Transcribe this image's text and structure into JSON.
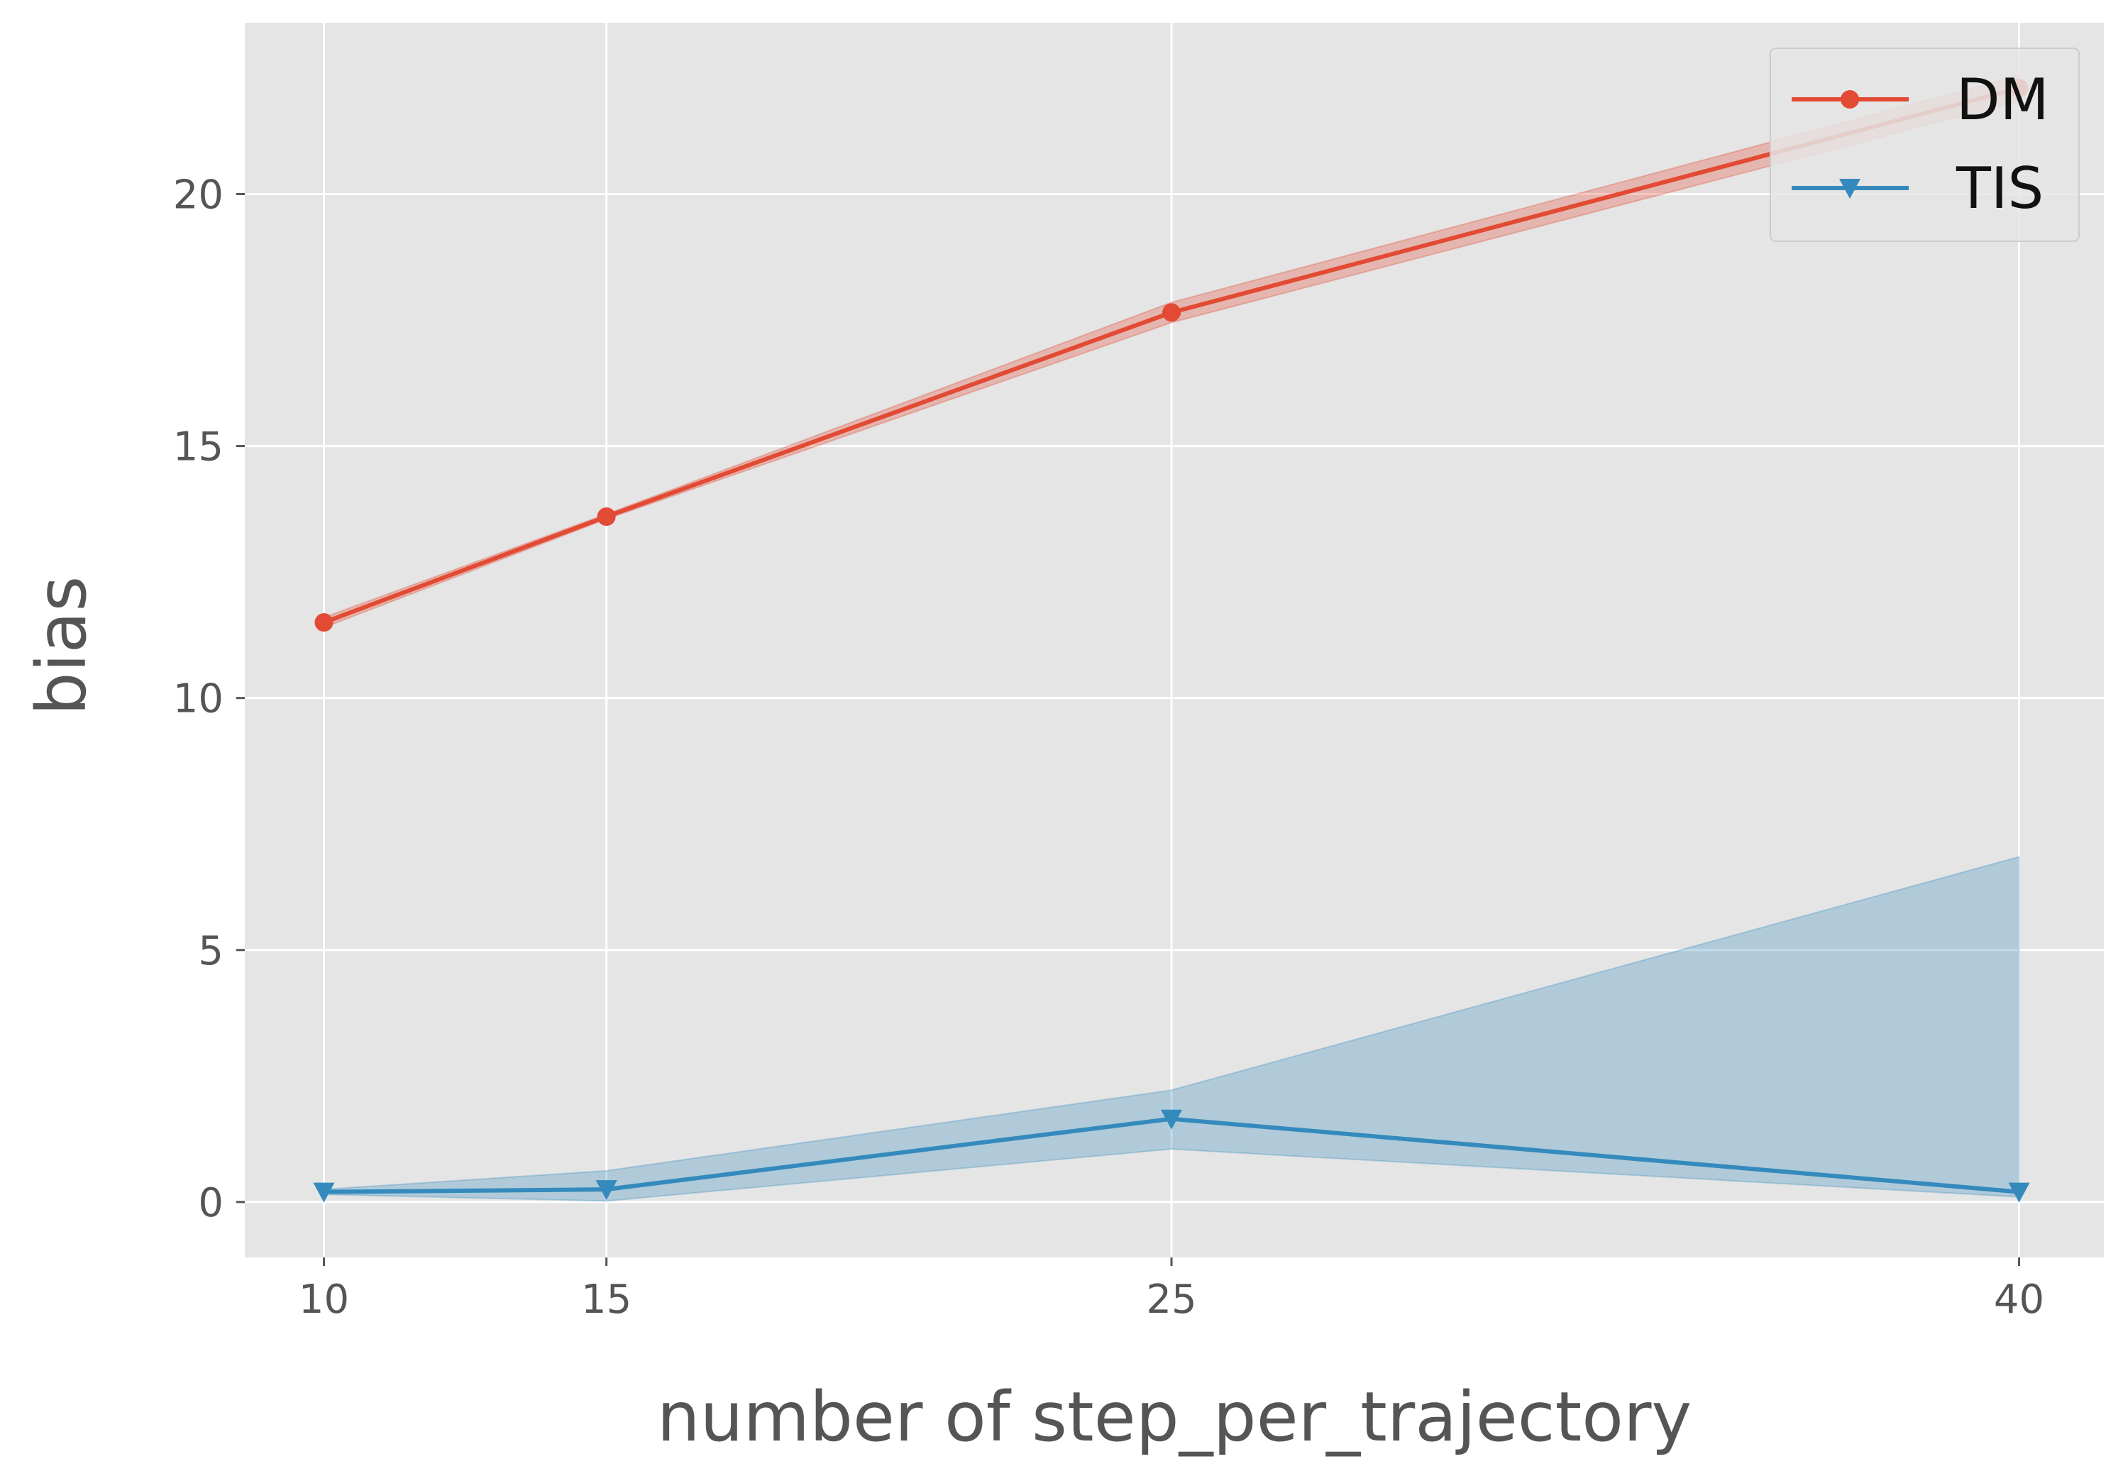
{
  "chart_data": {
    "type": "line",
    "title": "",
    "xlabel": "number of step_per_trajectory",
    "ylabel": "bias",
    "x": [
      10,
      15,
      25,
      40
    ],
    "xticks": [
      10,
      15,
      25,
      40
    ],
    "yticks": [
      0,
      5,
      10,
      15,
      20
    ],
    "xlim": [
      8.6,
      41.5
    ],
    "ylim": [
      -1.1,
      23.4
    ],
    "grid": true,
    "legend_position": "top-right",
    "background_color": "#e5e5e5",
    "series": [
      {
        "name": "DM",
        "color": "#e24a33",
        "marker": "circle",
        "values": [
          11.5,
          13.6,
          17.65,
          22.1
        ],
        "lower": [
          11.4,
          13.55,
          17.45,
          21.85
        ],
        "upper": [
          11.6,
          13.65,
          17.85,
          22.35
        ]
      },
      {
        "name": "TIS",
        "color": "#348abd",
        "marker": "triangle-down",
        "values": [
          0.2,
          0.25,
          1.65,
          0.2
        ],
        "lower": [
          0.15,
          0.02,
          1.05,
          0.1
        ],
        "upper": [
          0.25,
          0.62,
          2.22,
          6.85
        ]
      }
    ]
  }
}
